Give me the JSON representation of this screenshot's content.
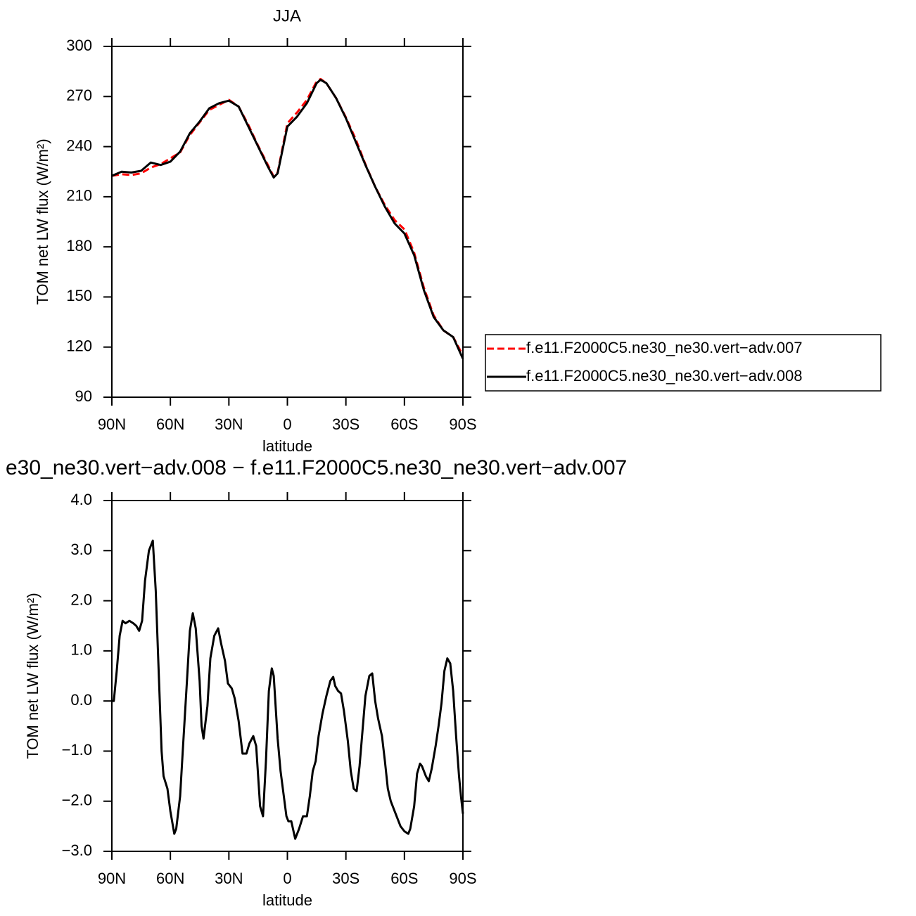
{
  "chart_data": [
    {
      "type": "line",
      "title": "JJA",
      "xlabel": "latitude",
      "ylabel": "TOM net LW flux (W/m²)",
      "x": [
        90,
        85,
        80,
        75,
        70,
        65,
        60,
        55,
        50,
        45,
        40,
        35,
        30,
        25,
        20,
        15,
        10,
        7,
        5,
        0,
        -5,
        -10,
        -15,
        -17,
        -20,
        -25,
        -30,
        -35,
        -40,
        -45,
        -50,
        -55,
        -60,
        -65,
        -70,
        -75,
        -80,
        -85,
        -90
      ],
      "series": [
        {
          "name": "f.e11.F2000C5.ne30_ne30.vert−adv.007",
          "color": "#ff0000",
          "dash": true,
          "values": [
            222.5,
            223.5,
            223,
            224,
            227.5,
            229.5,
            233,
            236.5,
            247,
            254.5,
            262,
            265,
            268,
            264,
            253,
            240.5,
            229,
            222,
            224.5,
            254,
            260.5,
            268,
            279,
            280.5,
            278,
            269,
            257.5,
            244.5,
            229.5,
            216,
            205,
            196,
            190.5,
            176.5,
            155.5,
            139,
            130,
            126,
            115
          ]
        },
        {
          "name": "f.e11.F2000C5.ne30_ne30.vert−adv.008",
          "color": "#000000",
          "dash": false,
          "values": [
            222.5,
            225,
            224.5,
            225.5,
            230.5,
            229,
            231,
            237,
            248,
            255,
            263,
            266,
            267.5,
            264,
            252,
            240,
            228,
            221.5,
            224,
            252,
            258,
            266,
            278,
            280,
            278,
            269,
            257,
            243,
            229,
            216,
            204,
            194,
            188,
            175,
            154,
            138,
            130,
            126,
            113
          ]
        }
      ],
      "xlim": [
        90,
        -90
      ],
      "xticks": [
        {
          "value": 90,
          "label": "90N"
        },
        {
          "value": 60,
          "label": "60N"
        },
        {
          "value": 30,
          "label": "30N"
        },
        0,
        {
          "value": -30,
          "label": "30S"
        },
        {
          "value": -60,
          "label": "60S"
        },
        {
          "value": -90,
          "label": "90S"
        }
      ],
      "ylim": [
        90,
        300
      ],
      "yticks": [
        90,
        120,
        150,
        180,
        210,
        240,
        270,
        300
      ],
      "legend": "right"
    },
    {
      "type": "line",
      "title": "e30_ne30.vert−adv.008 − f.e11.F2000C5.ne30_ne30.vert−adv.007",
      "xlabel": "latitude",
      "ylabel": "TOM net LW flux (W/m²)",
      "x": [
        90,
        89,
        87.5,
        86,
        84.5,
        83,
        81,
        79,
        77.5,
        76,
        74.5,
        73,
        71,
        69,
        67.5,
        66,
        64.5,
        63.5,
        61.5,
        60,
        58,
        57,
        55,
        53.5,
        51.5,
        50,
        48.5,
        47,
        45,
        44,
        43,
        41,
        39.5,
        37.5,
        35.5,
        34,
        32,
        30.5,
        28.5,
        27,
        25,
        23,
        21,
        19.5,
        17.5,
        16,
        14,
        12.5,
        11,
        9.5,
        8,
        7,
        5,
        3.5,
        2.5,
        0.5,
        -0.5,
        -2,
        -4,
        -6,
        -8,
        -10,
        -11.5,
        -13,
        -14.5,
        -16,
        -18,
        -20,
        -22,
        -23.5,
        -24.5,
        -26,
        -27.5,
        -29,
        -31,
        -32.5,
        -34,
        -35.5,
        -37,
        -38.5,
        -40,
        -42,
        -43.5,
        -45,
        -46.5,
        -48.5,
        -50,
        -51.5,
        -53,
        -54.5,
        -56.5,
        -58,
        -60,
        -62,
        -63,
        -65,
        -66.5,
        -68,
        -69,
        -71,
        -72.5,
        -74,
        -76,
        -77.5,
        -79,
        -80.5,
        -82,
        -83.5,
        -85,
        -86.5,
        -88,
        -89,
        -90
      ],
      "series": [
        {
          "color": "#000000",
          "dash": false,
          "values": [
            0.0,
            0.0,
            0.6,
            1.3,
            1.6,
            1.55,
            1.6,
            1.55,
            1.5,
            1.4,
            1.6,
            2.4,
            3.0,
            3.2,
            2.2,
            0.6,
            -1.0,
            -1.5,
            -1.75,
            -2.2,
            -2.65,
            -2.55,
            -1.9,
            -0.9,
            0.4,
            1.4,
            1.75,
            1.45,
            0.4,
            -0.5,
            -0.75,
            -0.1,
            0.85,
            1.3,
            1.45,
            1.15,
            0.8,
            0.35,
            0.25,
            0.05,
            -0.4,
            -1.05,
            -1.05,
            -0.85,
            -0.7,
            -0.9,
            -2.1,
            -2.3,
            -1.2,
            0.2,
            0.65,
            0.5,
            -0.75,
            -1.4,
            -1.7,
            -2.3,
            -2.4,
            -2.4,
            -2.75,
            -2.55,
            -2.3,
            -2.3,
            -1.9,
            -1.4,
            -1.2,
            -0.7,
            -0.25,
            0.1,
            0.4,
            0.48,
            0.3,
            0.2,
            0.15,
            -0.2,
            -0.8,
            -1.4,
            -1.75,
            -1.8,
            -1.3,
            -0.6,
            0.1,
            0.5,
            0.55,
            0.0,
            -0.35,
            -0.7,
            -1.2,
            -1.75,
            -2.0,
            -2.15,
            -2.35,
            -2.5,
            -2.6,
            -2.65,
            -2.55,
            -2.1,
            -1.45,
            -1.25,
            -1.3,
            -1.5,
            -1.6,
            -1.35,
            -0.9,
            -0.5,
            -0.05,
            0.6,
            0.85,
            0.75,
            0.2,
            -0.7,
            -1.5,
            -1.9,
            -2.25
          ]
        }
      ],
      "xlim": [
        90,
        -90
      ],
      "xticks": [
        {
          "value": 90,
          "label": "90N"
        },
        {
          "value": 60,
          "label": "60N"
        },
        {
          "value": 30,
          "label": "30N"
        },
        0,
        {
          "value": -30,
          "label": "30S"
        },
        {
          "value": -60,
          "label": "60S"
        },
        {
          "value": -90,
          "label": "90S"
        }
      ],
      "ylim": [
        -3,
        4
      ],
      "yticks": [
        {
          "value": -3,
          "label": "−3.0"
        },
        {
          "value": -2,
          "label": "−2.0"
        },
        {
          "value": -1,
          "label": "−1.0"
        },
        {
          "value": 0,
          "label": "0.0"
        },
        {
          "value": 1,
          "label": "1.0"
        },
        {
          "value": 2,
          "label": "2.0"
        },
        {
          "value": 3,
          "label": "3.0"
        },
        {
          "value": 4,
          "label": "4.0"
        }
      ]
    }
  ]
}
